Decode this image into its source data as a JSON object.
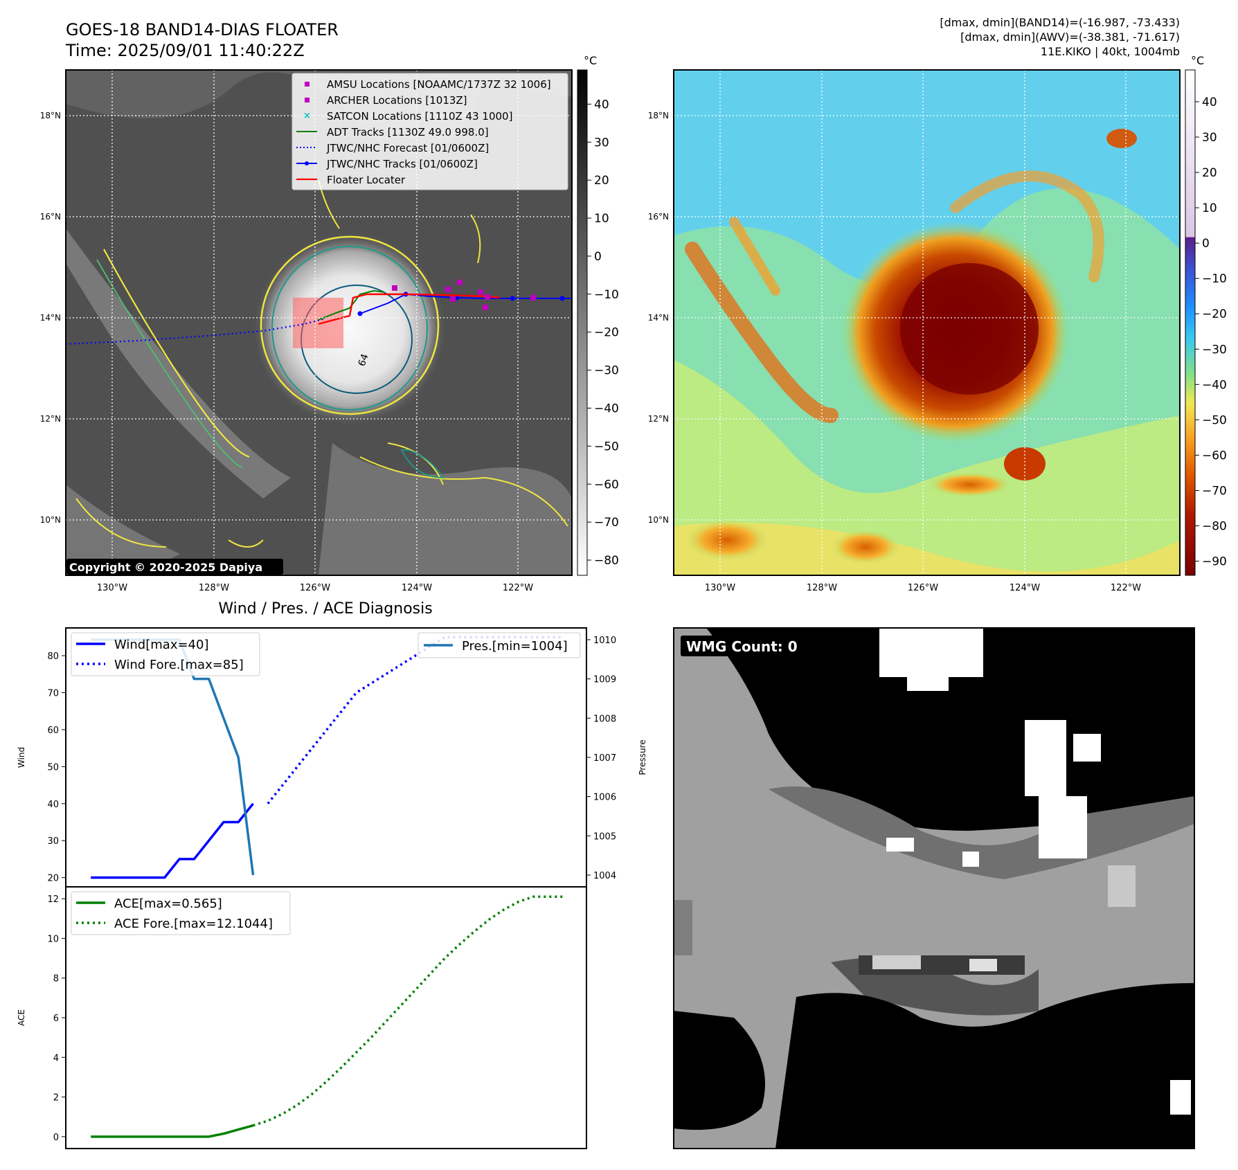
{
  "header": {
    "title_line1": "GOES-18 BAND14-DIAS FLOATER",
    "title_line2": "Time: 2025/09/01 11:40:22Z",
    "info_line1": "[dmax, dmin](BAND14)=(-16.987, -73.433)",
    "info_line2": "[dmax, dmin](AWV)=(-38.381, -71.617)",
    "info_line3": "11E.KIKO | 40kt, 1004mb"
  },
  "copyright": "Copyright © 2020-2025 Dapiya",
  "map_axes": {
    "lon_ticks": [
      "130°W",
      "128°W",
      "126°W",
      "124°W",
      "122°W"
    ],
    "lat_ticks": [
      "18°N",
      "16°N",
      "14°N",
      "12°N",
      "10°N"
    ]
  },
  "colorbar_gray": {
    "unit": "°C",
    "ticks": [
      "40",
      "30",
      "20",
      "10",
      "0",
      "−10",
      "−20",
      "−30",
      "−40",
      "−50",
      "−60",
      "−70",
      "−80"
    ]
  },
  "colorbar_color": {
    "unit": "°C",
    "ticks": [
      "40",
      "30",
      "20",
      "10",
      "0",
      "−10",
      "−20",
      "−30",
      "−40",
      "−50",
      "−60",
      "−70",
      "−80",
      "−90"
    ]
  },
  "legend": [
    {
      "label": "AMSU Locations [NOAAMC/1737Z 32 1006]",
      "marker": "square",
      "color": "#bf00bf"
    },
    {
      "label": "ARCHER Locations [1013Z]",
      "marker": "square",
      "color": "#bf00bf"
    },
    {
      "label": "SATCON Locations [1110Z 43 1000]",
      "marker": "x",
      "color": "#00bfbf"
    },
    {
      "label": "ADT Tracks [1130Z 49.0 998.0]",
      "marker": "line",
      "color": "#008000"
    },
    {
      "label": "JTWC/NHC Forecast [01/0600Z]",
      "marker": "dotted",
      "color": "#0000ff"
    },
    {
      "label": "JTWC/NHC Tracks [01/0600Z]",
      "marker": "line-dot",
      "color": "#0000ff"
    },
    {
      "label": "Floater Locater",
      "marker": "line",
      "color": "#ff0000"
    }
  ],
  "contour_label": "64",
  "wmg": {
    "label": "WMG Count: 0"
  },
  "chart_data": [
    {
      "type": "line",
      "title": "Wind / Pres. / ACE Diagnosis",
      "ylabel": "Wind",
      "y2label": "Pressure",
      "ylim": [
        17.5,
        87.5
      ],
      "y2lim": [
        1003.7,
        1010.3
      ],
      "yticks": [
        20,
        30,
        40,
        50,
        60,
        70,
        80
      ],
      "y2ticks": [
        1004,
        1005,
        1006,
        1007,
        1008,
        1009,
        1010
      ],
      "legend_left": [
        "Wind[max=40]",
        "Wind Fore.[max=85]"
      ],
      "legend_right": [
        "Pres.[min=1004]"
      ],
      "series": [
        {
          "name": "Wind[max=40]",
          "axis": "left",
          "style": "solid",
          "color": "#0000ff",
          "x": [
            0,
            1,
            2,
            3,
            4,
            5,
            6,
            7,
            8,
            9,
            10,
            11
          ],
          "values": [
            20,
            20,
            20,
            20,
            20,
            20,
            25,
            25,
            30,
            35,
            35,
            40
          ]
        },
        {
          "name": "Wind Fore.[max=85]",
          "axis": "left",
          "style": "dotted",
          "color": "#0000ff",
          "x": [
            12,
            13,
            14,
            15,
            16,
            17,
            18,
            19,
            20,
            21,
            22,
            23,
            24,
            25,
            26,
            27,
            28,
            29,
            30,
            31,
            32
          ],
          "values": [
            40,
            45,
            50,
            55,
            60,
            65,
            70,
            72.5,
            75,
            77.5,
            80,
            82.5,
            85,
            85,
            85,
            85,
            85,
            85,
            85,
            85,
            85
          ]
        },
        {
          "name": "Pres.[min=1004]",
          "axis": "right",
          "style": "solid",
          "color": "#1f77b4",
          "x": [
            0,
            1,
            2,
            3,
            4,
            5,
            6,
            7,
            8,
            9,
            10,
            11
          ],
          "values": [
            1010,
            1010,
            1010,
            1010,
            1010,
            1010,
            1010,
            1009,
            1009,
            1008,
            1007,
            1004
          ]
        }
      ],
      "xlim": [
        -1.7,
        33.6
      ]
    },
    {
      "type": "line",
      "ylabel": "ACE",
      "ylim": [
        -0.6,
        12.6
      ],
      "yticks": [
        0,
        2,
        4,
        6,
        8,
        10,
        12
      ],
      "legend": [
        "ACE[max=0.565]",
        "ACE Fore.[max=12.1044]"
      ],
      "series": [
        {
          "name": "ACE[max=0.565]",
          "style": "solid",
          "color": "#008000",
          "x": [
            0,
            1,
            2,
            3,
            4,
            5,
            6,
            7,
            8,
            9,
            10,
            11
          ],
          "values": [
            0,
            0,
            0,
            0,
            0,
            0,
            0,
            0,
            0,
            0.15,
            0.36,
            0.565
          ]
        },
        {
          "name": "ACE Fore.[max=12.1044]",
          "style": "dotted",
          "color": "#008000",
          "x": [
            11,
            12,
            13,
            14,
            15,
            16,
            17,
            18,
            19,
            20,
            21,
            22,
            23,
            24,
            25,
            26,
            27,
            28,
            29,
            30,
            31,
            32
          ],
          "values": [
            0.565,
            0.8,
            1.15,
            1.6,
            2.15,
            2.8,
            3.5,
            4.25,
            5.0,
            5.8,
            6.6,
            7.4,
            8.2,
            9.0,
            9.7,
            10.35,
            10.95,
            11.45,
            11.85,
            12.1044,
            12.1044,
            12.1044
          ]
        }
      ],
      "xlim": [
        -1.7,
        33.6
      ]
    }
  ]
}
